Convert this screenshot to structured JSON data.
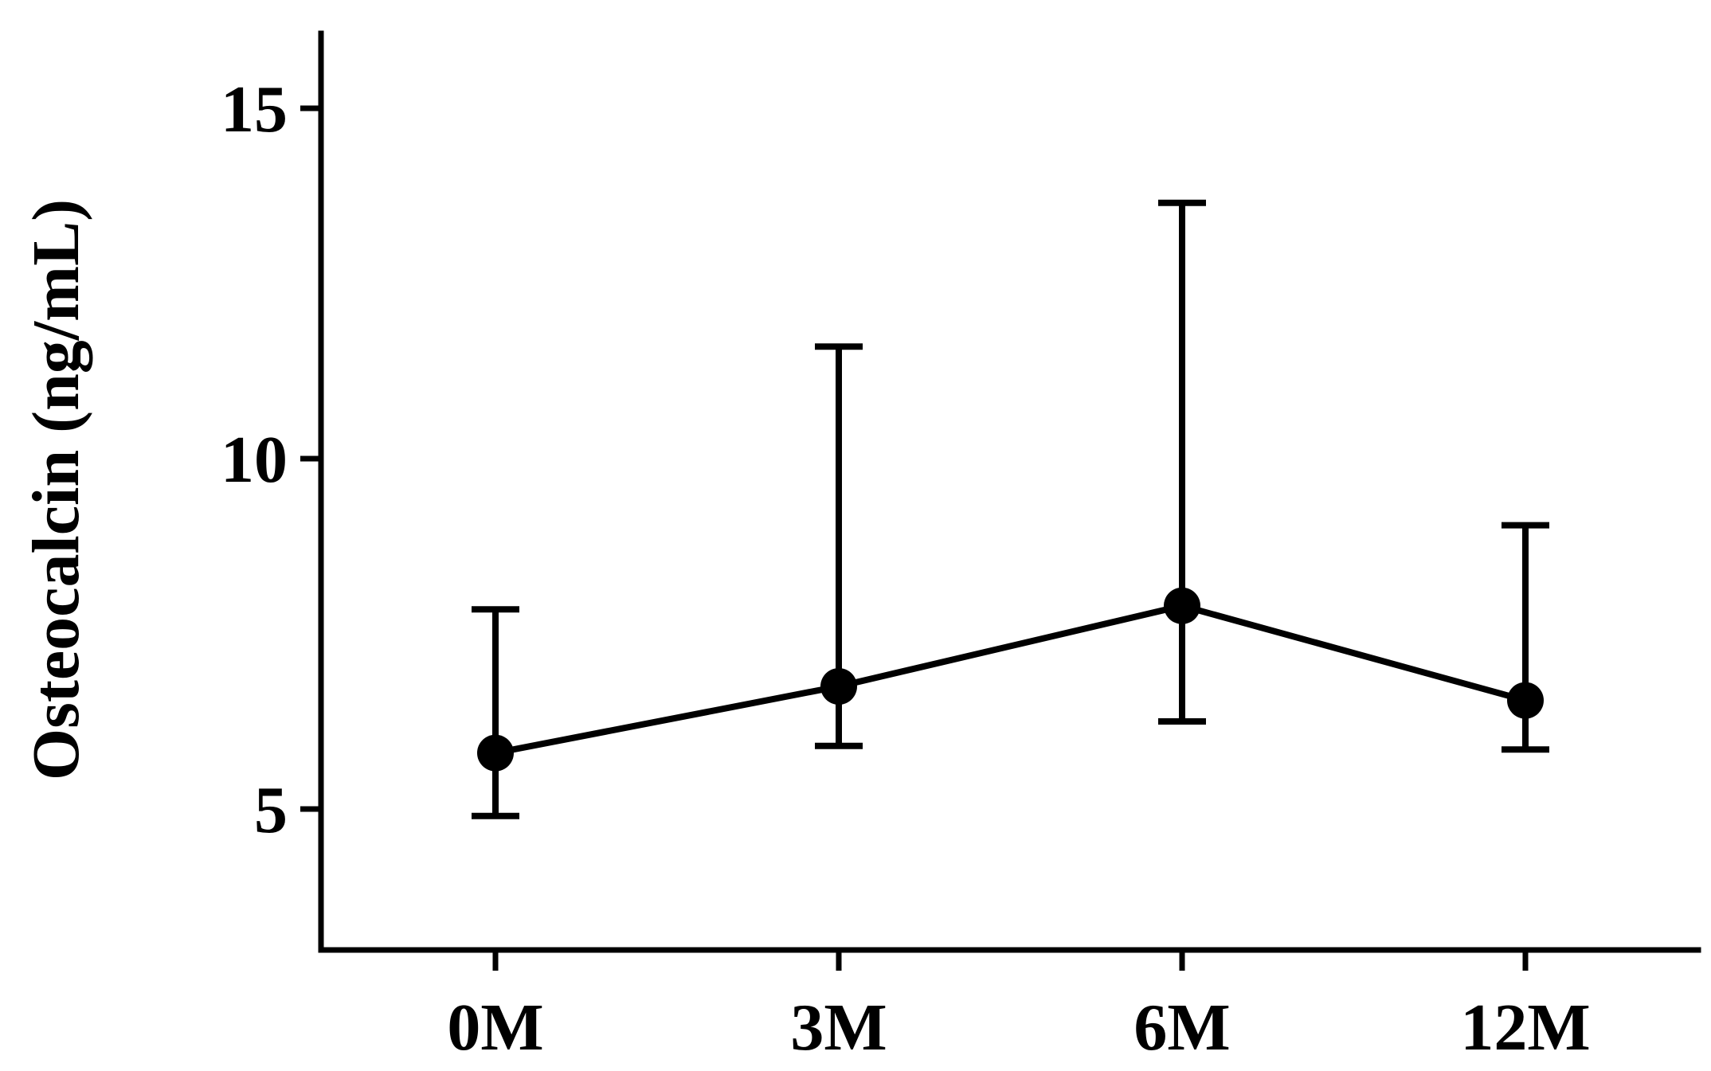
{
  "chart_data": {
    "type": "line",
    "title": "",
    "xlabel": "",
    "ylabel": "Osteocalcin (ng/mL)",
    "categories": [
      "0M",
      "3M",
      "6M",
      "12M"
    ],
    "series": [
      {
        "values": [
          5.8,
          6.75,
          7.9,
          6.55
        ],
        "error_upper": [
          7.85,
          11.6,
          13.65,
          9.05
        ],
        "error_lower": [
          4.9,
          5.9,
          6.25,
          5.85
        ]
      }
    ],
    "ylim": [
      3,
      16
    ],
    "yticks": [
      5,
      10,
      15
    ],
    "grid": false,
    "color": "#000000"
  }
}
